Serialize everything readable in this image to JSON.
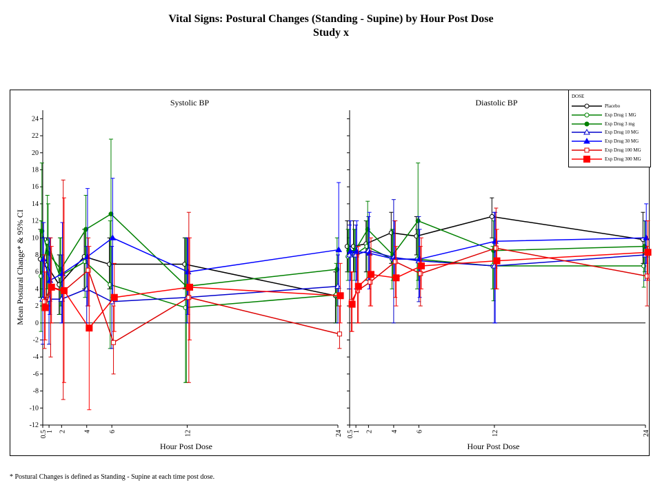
{
  "page": {
    "title_line1": "Vital Signs: Postural Changes (Standing - Supine) by Hour Post Dose",
    "title_line2": "Study x",
    "footnote": "* Postural Changes is defined as Standing - Supine at each time post dose."
  },
  "chart_data": {
    "type": "line",
    "ylabel": "Mean Postural Change* & 95% CI",
    "xlabel": "Hour Post Dose",
    "ylim": [
      -12,
      25
    ],
    "xlim": [
      0.5,
      24
    ],
    "y_ticks": [
      "-12",
      "-10",
      "-8",
      "-6",
      "-4",
      "-2",
      "0",
      "2",
      "4",
      "6",
      "8",
      "10",
      "12",
      "14",
      "16",
      "18",
      "20",
      "22",
      "24"
    ],
    "x_ticks": [
      "0.5",
      "1",
      "2",
      "4",
      "6",
      "12",
      "24"
    ],
    "legend": {
      "title": "DOSE",
      "entries": [
        {
          "name": "Placebo",
          "color": "#000000",
          "marker": "open-circle"
        },
        {
          "name": "Exp Drug 1 MG",
          "color": "#008000",
          "marker": "open-circle"
        },
        {
          "name": "Exp Drug 3 mg",
          "color": "#008000",
          "marker": "filled-circle"
        },
        {
          "name": "Exp Drug 10 MG",
          "color": "#0000cc",
          "marker": "open-triangle"
        },
        {
          "name": "Exp Drug 30 MG",
          "color": "#0000ff",
          "marker": "filled-triangle"
        },
        {
          "name": "Exp Drug 100 MG",
          "color": "#dd0000",
          "marker": "open-square"
        },
        {
          "name": "Exp Drug 300 MG",
          "color": "#ff0000",
          "marker": "filled-square"
        }
      ]
    },
    "panels": [
      {
        "title": "Systolic BP",
        "series": [
          {
            "name": "Placebo",
            "x": [
              0.5,
              1,
              2,
              4,
              6,
              12,
              24
            ],
            "y": [
              7.5,
              6.8,
              4.5,
              7.8,
              6.9,
              6.9,
              3.2
            ],
            "lo": [
              3,
              3,
              1,
              4,
              4,
              4,
              0
            ],
            "hi": [
              11,
              10,
              8,
              11,
              10,
              10,
              6
            ]
          },
          {
            "name": "Exp Drug 1 MG",
            "x": [
              0.5,
              1,
              2,
              4,
              6,
              12,
              24
            ],
            "y": [
              5.5,
              9.5,
              5.5,
              7.2,
              4.5,
              1.8,
              3.3
            ],
            "lo": [
              -1,
              4,
              1,
              3,
              -3,
              -7,
              0
            ],
            "hi": [
              12,
              15,
              10,
              11,
              12,
              10,
              7
            ]
          },
          {
            "name": "Exp Drug 3 mg",
            "x": [
              0.5,
              1,
              2,
              4,
              6,
              12,
              24
            ],
            "y": [
              10.8,
              8.2,
              6.3,
              11.0,
              12.8,
              4.3,
              6.3
            ],
            "lo": [
              3,
              2,
              2,
              7,
              4,
              -7,
              2
            ],
            "hi": [
              18.8,
              14,
              10,
              15,
              21.6,
              10,
              10
            ]
          },
          {
            "name": "Exp Drug 10 MG",
            "x": [
              0.5,
              1,
              2,
              4,
              6,
              12,
              24
            ],
            "y": [
              2.8,
              2.8,
              2.8,
              4.0,
              2.5,
              3.0,
              4.3
            ],
            "lo": [
              -2.5,
              -2.5,
              0,
              0,
              -3,
              0,
              0
            ],
            "hi": [
              10,
              10,
              8,
              9,
              9,
              10,
              8
            ]
          },
          {
            "name": "Exp Drug 30 MG",
            "x": [
              0.5,
              1,
              2,
              4,
              6,
              12,
              24
            ],
            "y": [
              7.5,
              5.0,
              5.8,
              7.8,
              10.0,
              6.0,
              8.6
            ],
            "lo": [
              3,
              1,
              0,
              2,
              3,
              1,
              3
            ],
            "hi": [
              11.8,
              10,
              11.8,
              15.8,
              17,
              10,
              16.5
            ]
          },
          {
            "name": "Exp Drug 100 MG",
            "x": [
              0.5,
              1,
              2,
              4,
              6,
              12,
              24
            ],
            "y": [
              2.5,
              4.2,
              3.7,
              6.2,
              -2.3,
              3.0,
              -1.3
            ],
            "lo": [
              -3,
              -4,
              -9,
              2,
              -6,
              -7,
              -3
            ],
            "hi": [
              8,
              10,
              16.8,
              10,
              2,
              13,
              2
            ]
          },
          {
            "name": "Exp Drug 300 MG",
            "x": [
              0.5,
              1,
              2,
              4,
              6,
              12,
              24
            ],
            "y": [
              1.8,
              4.2,
              3.8,
              -0.6,
              3.0,
              4.2,
              3.2
            ],
            "lo": [
              -2,
              0,
              -7,
              -10.2,
              -1,
              -2,
              0
            ],
            "hi": [
              6,
              9,
              14.7,
              9,
              7,
              10,
              7
            ]
          }
        ]
      },
      {
        "title": "Diastolic BP",
        "series": [
          {
            "name": "Placebo",
            "x": [
              0.5,
              1,
              2,
              4,
              6,
              12,
              24
            ],
            "y": [
              9.0,
              9.0,
              9.3,
              10.6,
              10.2,
              12.5,
              9.8
            ],
            "lo": [
              6,
              6,
              6,
              7,
              8,
              10,
              7
            ],
            "hi": [
              12,
              12,
              12,
              13,
              12.5,
              14.7,
              13
            ]
          },
          {
            "name": "Exp Drug 1 MG",
            "x": [
              0.5,
              1,
              2,
              4,
              6,
              12,
              24
            ],
            "y": [
              7.8,
              8.0,
              9.0,
              7.5,
              7.5,
              6.7,
              6.7
            ],
            "lo": [
              5,
              5,
              5,
              4,
              4,
              4,
              4.2
            ],
            "hi": [
              11,
              11,
              12,
              11,
              11,
              9,
              9
            ]
          },
          {
            "name": "Exp Drug 3 mg",
            "x": [
              0.5,
              1,
              2,
              4,
              6,
              12,
              24
            ],
            "y": [
              8.5,
              8.5,
              11.0,
              8.0,
              12.0,
              8.5,
              9.0
            ],
            "lo": [
              6,
              6,
              8,
              5,
              5,
              2.6,
              6
            ],
            "hi": [
              11,
              11,
              14.3,
              11,
              18.8,
              12,
              12
            ]
          },
          {
            "name": "Exp Drug 10 MG",
            "x": [
              0.5,
              1,
              2,
              4,
              6,
              12,
              24
            ],
            "y": [
              8.0,
              8.0,
              8.5,
              7.7,
              7.3,
              6.7,
              8.0
            ],
            "lo": [
              4,
              4,
              5,
              0,
              2.5,
              0,
              5
            ],
            "hi": [
              11.5,
              11.5,
              12.5,
              14.5,
              12.5,
              13,
              12
            ]
          },
          {
            "name": "Exp Drug 30 MG",
            "x": [
              0.5,
              1,
              2,
              4,
              6,
              12,
              24
            ],
            "y": [
              8.4,
              8.4,
              8.2,
              7.5,
              7.5,
              9.6,
              10.0
            ],
            "lo": [
              5,
              5,
              4,
              5,
              3,
              0,
              7
            ],
            "hi": [
              12,
              12,
              13,
              12,
              11,
              13,
              14
            ]
          },
          {
            "name": "Exp Drug 100 MG",
            "x": [
              0.5,
              1,
              2,
              4,
              6,
              12,
              24
            ],
            "y": [
              2.5,
              3.8,
              4.8,
              7.2,
              5.8,
              8.8,
              5.5
            ],
            "lo": [
              -1,
              0,
              2,
              3,
              2,
              4,
              2
            ],
            "hi": [
              6,
              8,
              8,
              12,
              9,
              13.5,
              9
            ]
          },
          {
            "name": "Exp Drug 300 MG",
            "x": [
              0.5,
              1,
              2,
              4,
              6,
              12,
              24
            ],
            "y": [
              2.2,
              4.3,
              5.7,
              5.3,
              6.7,
              7.3,
              8.3
            ],
            "lo": [
              -1,
              0,
              2,
              2,
              4,
              4,
              5
            ],
            "hi": [
              6,
              9,
              10,
              9,
              10,
              11,
              12
            ]
          }
        ]
      }
    ]
  }
}
